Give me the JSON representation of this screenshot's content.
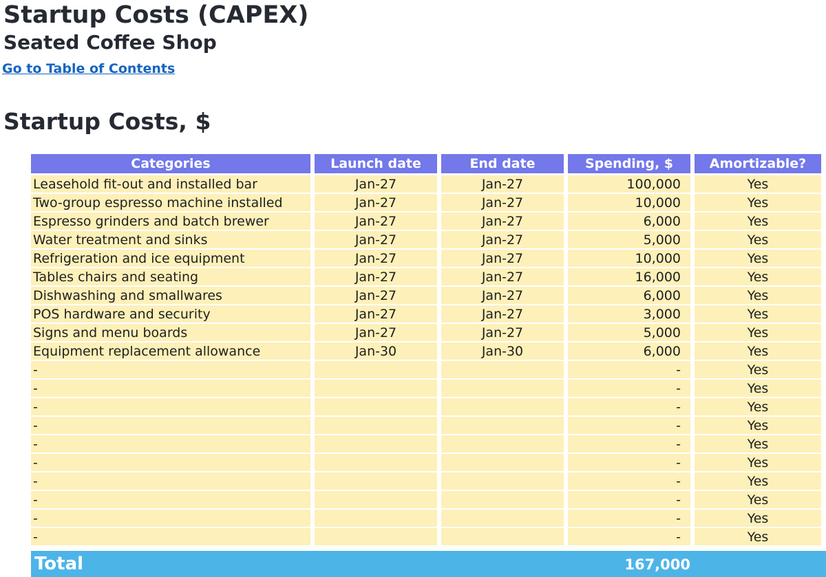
{
  "header": {
    "title": "Startup Costs (CAPEX)",
    "subtitle": "Seated Coffee Shop",
    "toc_link": "Go to Table of Contents"
  },
  "section": {
    "title": "Startup Costs, $"
  },
  "table": {
    "columns": [
      "Categories",
      "Launch date",
      "End date",
      "Spending, $",
      "Amortizable?"
    ],
    "rows": [
      [
        "Leasehold fit-out and installed bar",
        "Jan-27",
        "Jan-27",
        "100,000",
        "Yes"
      ],
      [
        "Two-group espresso machine installed",
        "Jan-27",
        "Jan-27",
        "10,000",
        "Yes"
      ],
      [
        "Espresso grinders and batch brewer",
        "Jan-27",
        "Jan-27",
        "6,000",
        "Yes"
      ],
      [
        "Water treatment and sinks",
        "Jan-27",
        "Jan-27",
        "5,000",
        "Yes"
      ],
      [
        "Refrigeration and ice equipment",
        "Jan-27",
        "Jan-27",
        "10,000",
        "Yes"
      ],
      [
        "Tables chairs and seating",
        "Jan-27",
        "Jan-27",
        "16,000",
        "Yes"
      ],
      [
        "Dishwashing and smallwares",
        "Jan-27",
        "Jan-27",
        "6,000",
        "Yes"
      ],
      [
        "POS hardware and security",
        "Jan-27",
        "Jan-27",
        "3,000",
        "Yes"
      ],
      [
        "Signs and menu boards",
        "Jan-27",
        "Jan-27",
        "5,000",
        "Yes"
      ],
      [
        "Equipment replacement allowance",
        "Jan-30",
        "Jan-30",
        "6,000",
        "Yes"
      ],
      [
        "-",
        "",
        "",
        "-",
        "Yes"
      ],
      [
        "-",
        "",
        "",
        "-",
        "Yes"
      ],
      [
        "-",
        "",
        "",
        "-",
        "Yes"
      ],
      [
        "-",
        "",
        "",
        "-",
        "Yes"
      ],
      [
        "-",
        "",
        "",
        "-",
        "Yes"
      ],
      [
        "-",
        "",
        "",
        "-",
        "Yes"
      ],
      [
        "-",
        "",
        "",
        "-",
        "Yes"
      ],
      [
        "-",
        "",
        "",
        "-",
        "Yes"
      ],
      [
        "-",
        "",
        "",
        "-",
        "Yes"
      ],
      [
        "-",
        "",
        "",
        "-",
        "Yes"
      ]
    ]
  },
  "total": {
    "label": "Total",
    "value": "167,000"
  },
  "colors": {
    "header_fill": "#7378ea",
    "cell_fill": "#fdf0b9",
    "total_fill": "#4db4e8",
    "link": "#1565c0"
  }
}
